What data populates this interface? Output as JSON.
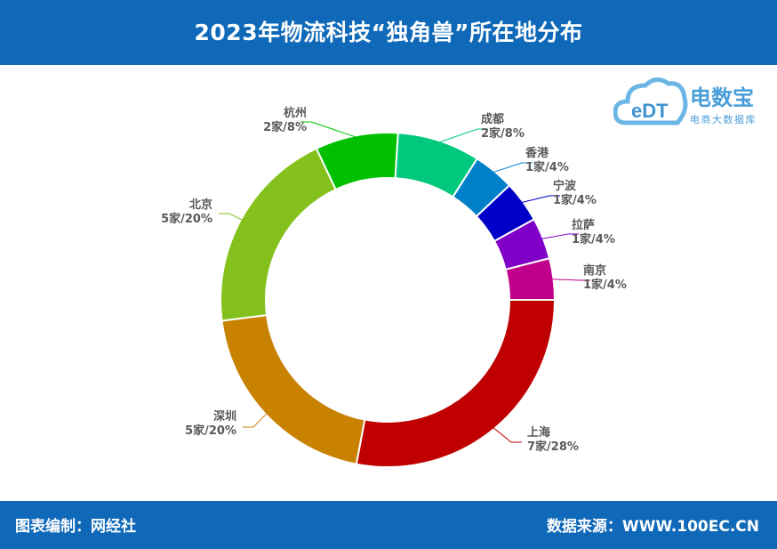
{
  "header": {
    "title": "2023年物流科技“独角兽”所在地分布"
  },
  "footer": {
    "left": "图表编制：网经社",
    "right": "数据来源：WWW.100EC.CN"
  },
  "logo": {
    "mark": "eDT",
    "name": "电数宝",
    "sub": "电商大数据库"
  },
  "colors": {
    "bar": "#0f69b8"
  },
  "chart_data": {
    "type": "pie",
    "title": "2023年物流科技“独角兽”所在地分布",
    "categories": [
      "上海",
      "深圳",
      "北京",
      "杭州",
      "成都",
      "香港",
      "宁波",
      "拉萨",
      "南京"
    ],
    "values": [
      7,
      5,
      5,
      2,
      2,
      1,
      1,
      1,
      1
    ],
    "value_labels": [
      "7家/28%",
      "5家/20%",
      "5家/20%",
      "2家/8%",
      "2家/8%",
      "1家/4%",
      "1家/4%",
      "1家/4%",
      "1家/4%"
    ],
    "colors": [
      "#c00000",
      "#c88200",
      "#84c11c",
      "#00c000",
      "#00c87c",
      "#0080c8",
      "#0000c8",
      "#8000c8",
      "#c0008a"
    ],
    "donut": true
  }
}
